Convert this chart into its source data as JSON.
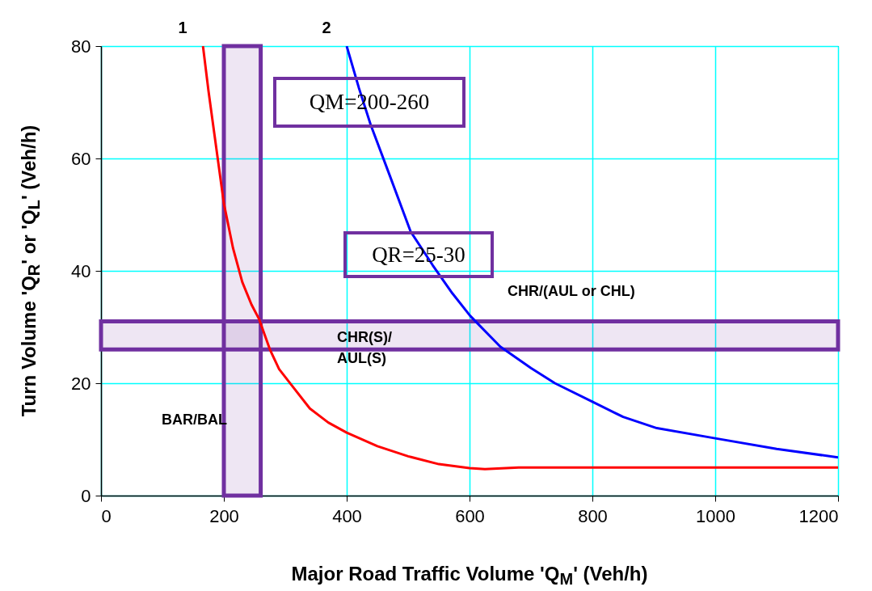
{
  "chart_data": {
    "type": "line",
    "xlabel": "Major Road Traffic Volume 'Q$_{M}$' (Veh/h)",
    "ylabel": "Turn Volume 'Q$_{R}$' or 'Q$_{L}$' (Veh/h)",
    "xlim": [
      0,
      1200
    ],
    "ylim": [
      0,
      80
    ],
    "xticks": [
      0,
      200,
      400,
      600,
      800,
      {
        "value": 1000,
        "label": "1000"
      },
      {
        "value": 1200,
        "label": "1200"
      }
    ],
    "yticks": [
      0,
      20,
      40,
      60,
      80
    ],
    "grid": true,
    "legend": false,
    "series": [
      {
        "name": "1",
        "color": "#ff0000",
        "x": [
          166,
          175,
          185,
          200,
          215,
          230,
          245,
          257,
          275,
          290,
          310,
          340,
          370,
          400,
          450,
          500,
          550,
          600,
          625,
          680,
          1200
        ],
        "values": [
          80,
          72,
          64,
          52,
          44,
          38,
          34,
          31.5,
          26,
          22.5,
          19.7,
          15.5,
          13,
          11.2,
          8.8,
          7,
          5.6,
          4.9,
          4.7,
          5,
          5
        ]
      },
      {
        "name": "2",
        "color": "#0000ff",
        "x": [
          400,
          420,
          439,
          470,
          504,
          540,
          572,
          601,
          650,
          700,
          739,
          800,
          850,
          905,
          1000,
          1100,
          1200
        ],
        "values": [
          80,
          72.5,
          66,
          57,
          47,
          41,
          36,
          32,
          26.5,
          22.7,
          20,
          16.7,
          14,
          12,
          10.2,
          8.3,
          6.8
        ]
      }
    ],
    "bands": [
      {
        "axis": "x",
        "from": 200,
        "to": 260,
        "color": "#7030a0"
      },
      {
        "axis": "y",
        "from": 26,
        "to": 31,
        "color": "#7030a0"
      }
    ],
    "annotations": [
      "QM=200-260",
      "QR=25-30",
      "CHR/(AUL or CHL)",
      "CHR(S)/\nAUL(S)",
      "BAR/BAL"
    ]
  }
}
